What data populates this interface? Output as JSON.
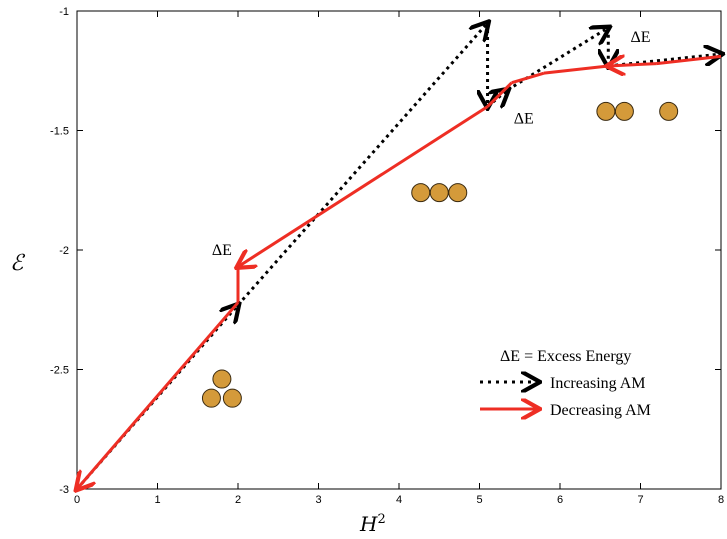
{
  "chart_data": {
    "type": "line",
    "xlabel": "H",
    "xlabel_sup": "2",
    "ylabel": "ℰ",
    "xlim": [
      0,
      8
    ],
    "ylim": [
      -3,
      -1
    ],
    "x_ticks": [
      "0",
      "1",
      "2",
      "3",
      "4",
      "5",
      "6",
      "7",
      "8"
    ],
    "y_ticks": [
      "-1",
      "-1.5",
      "-2",
      "-2.5",
      "-3"
    ],
    "grid": false,
    "legend_position": "bottom-right",
    "legend_title": "ΔE = Excess Energy",
    "series": [
      {
        "name": "Increasing AM",
        "color": "#000000",
        "style": "dotted",
        "points": [
          [
            0,
            -3
          ],
          [
            2.0,
            -2.23
          ],
          [
            5.1,
            -1.05
          ],
          [
            5.1,
            -1.4
          ],
          [
            5.35,
            -1.33
          ],
          [
            6.6,
            -1.07
          ],
          [
            6.6,
            -1.23
          ],
          [
            8.0,
            -1.18
          ]
        ]
      },
      {
        "name": "Decreasing AM",
        "color": "#ee2e24",
        "style": "solid",
        "points": [
          [
            8.0,
            -1.19
          ],
          [
            7.2,
            -1.22
          ],
          [
            6.6,
            -1.23
          ],
          [
            5.8,
            -1.26
          ],
          [
            5.4,
            -1.3
          ],
          [
            5.1,
            -1.4
          ],
          [
            2.0,
            -2.07
          ],
          [
            2.0,
            -2.22
          ],
          [
            0,
            -3
          ]
        ]
      }
    ],
    "annotations": [
      {
        "text": "ΔE",
        "x": 1.8,
        "y": -2.02
      },
      {
        "text": "ΔE",
        "x": 5.55,
        "y": -1.47
      },
      {
        "text": "ΔE",
        "x": 7.0,
        "y": -1.13
      }
    ],
    "circle_clusters": [
      {
        "arrangement": "triangle",
        "centers": [
          [
            1.8,
            -2.54
          ],
          [
            1.67,
            -2.62
          ],
          [
            1.93,
            -2.62
          ]
        ]
      },
      {
        "arrangement": "chain-3",
        "centers": [
          [
            4.27,
            -1.76
          ],
          [
            4.5,
            -1.76
          ],
          [
            4.73,
            -1.76
          ]
        ]
      },
      {
        "arrangement": "pair-plus-one",
        "centers": [
          [
            6.57,
            -1.42
          ],
          [
            6.8,
            -1.42
          ],
          [
            7.35,
            -1.42
          ]
        ]
      }
    ],
    "cluster_color": "#d49a3a"
  }
}
